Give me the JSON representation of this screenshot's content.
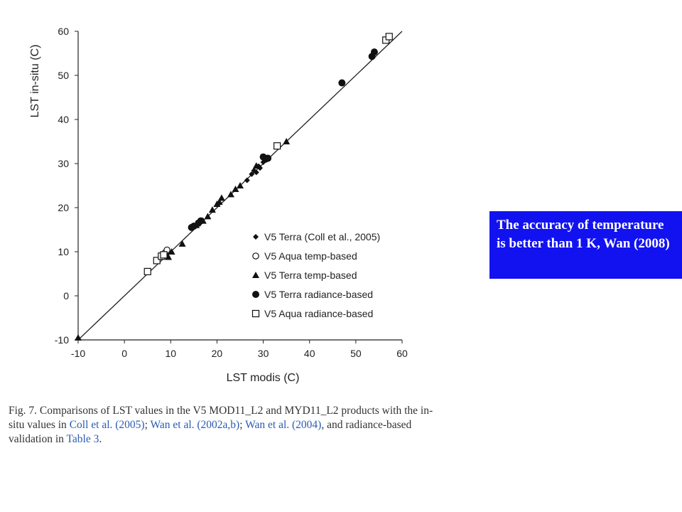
{
  "chart_data": {
    "type": "scatter",
    "title": "",
    "xlabel": "LST modis (C)",
    "ylabel": "LST in-situ (C)",
    "xlim": [
      -10,
      60
    ],
    "ylim": [
      -10,
      60
    ],
    "xticks": [
      "-10",
      "0",
      "10",
      "20",
      "30",
      "40",
      "50",
      "60"
    ],
    "yticks": [
      "-10",
      "0",
      "10",
      "20",
      "30",
      "40",
      "50",
      "60"
    ],
    "grid": false,
    "legend_position": "bottom-right",
    "reference_line": {
      "x": [
        -10,
        60
      ],
      "y": [
        -10,
        60
      ]
    },
    "series": [
      {
        "name": "V5 Terra (Coll et al., 2005)",
        "marker": "diamond",
        "color": "#111111",
        "x": [
          26.5,
          27.5,
          28.0,
          28.5,
          29.0,
          29.3,
          30.0
        ],
        "y": [
          26.2,
          27.6,
          28.4,
          28.0,
          29.4,
          29.0,
          30.3
        ]
      },
      {
        "name": "V5 Aqua temp-based",
        "marker": "circle-open",
        "color": "#111111",
        "x": [
          8.8,
          9.2
        ],
        "y": [
          9.8,
          10.4
        ]
      },
      {
        "name": "V5 Terra temp-based",
        "marker": "triangle",
        "color": "#111111",
        "x": [
          -10.0,
          9.5,
          10.2,
          12.5,
          15.5,
          17.0,
          18.0,
          19.0,
          20.0,
          20.5,
          21.0,
          23.0,
          24.0,
          25.0,
          28.5,
          35.0
        ],
        "y": [
          -9.5,
          8.8,
          10.0,
          11.8,
          16.0,
          17.0,
          18.0,
          19.5,
          20.8,
          21.3,
          22.2,
          23.0,
          24.2,
          25.0,
          29.5,
          35.0
        ]
      },
      {
        "name": "V5 Terra radiance-based",
        "marker": "circle",
        "color": "#111111",
        "x": [
          14.5,
          15.0,
          16.0,
          16.5,
          30.0,
          30.5,
          31.0,
          47.0,
          53.5,
          54.0
        ],
        "y": [
          15.5,
          15.8,
          16.5,
          17.0,
          31.5,
          31.0,
          31.2,
          48.3,
          54.3,
          55.3
        ]
      },
      {
        "name": "V5 Aqua radiance-based",
        "marker": "square-open",
        "color": "#111111",
        "x": [
          5.0,
          7.0,
          8.0,
          8.5,
          33.0,
          56.5,
          57.2
        ],
        "y": [
          5.5,
          8.0,
          9.0,
          9.3,
          34.0,
          58.0,
          58.8
        ]
      }
    ]
  },
  "caption": {
    "segments": [
      {
        "text": "Fig. 7. Comparisons of LST values in the V5 MOD11_L2 and MYD11_L2 products with the in-situ values in ",
        "link": false
      },
      {
        "text": "Coll et al. (2005)",
        "link": true
      },
      {
        "text": "; ",
        "link": false
      },
      {
        "text": "Wan et al. (2002a,b)",
        "link": true
      },
      {
        "text": "; ",
        "link": false
      },
      {
        "text": "Wan et al. (2004)",
        "link": true
      },
      {
        "text": ", and radiance-based validation in ",
        "link": false
      },
      {
        "text": "Table 3",
        "link": true
      },
      {
        "text": ".",
        "link": false
      }
    ]
  },
  "note": {
    "text": "The accuracy of temperature is better than 1 K, Wan (2008)",
    "background": "#1212f0"
  }
}
